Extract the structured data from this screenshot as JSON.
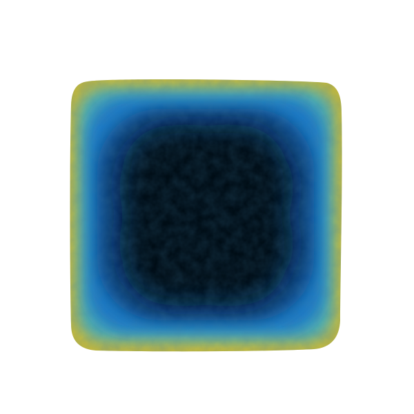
{
  "image": {
    "subject": "square-tile-heatmap",
    "colors": {
      "background": "#ffffff",
      "edge": "#c8b83a",
      "edge_dark": "#9fa23a",
      "rim": "#2aa6c4",
      "ring_bright": "#1e78c8",
      "ring_dark": "#0e4d8f",
      "core": "#020a14"
    }
  }
}
